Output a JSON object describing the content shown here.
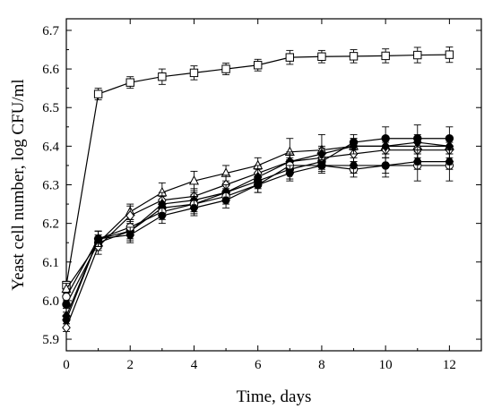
{
  "chart_data": {
    "type": "line",
    "title": "",
    "xlabel": "Time, days",
    "ylabel": "Yeast cell number, log CFU/ml",
    "xlim": [
      0,
      13
    ],
    "ylim": [
      5.87,
      6.73
    ],
    "x_ticks": [
      0,
      2,
      4,
      6,
      8,
      10,
      12
    ],
    "y_ticks": [
      5.9,
      6.0,
      6.1,
      6.2,
      6.3,
      6.4,
      6.5,
      6.6,
      6.7
    ],
    "grid": false,
    "legend": "none",
    "x": [
      0,
      1,
      2,
      3,
      4,
      5,
      6,
      7,
      8,
      9,
      10,
      11,
      12
    ],
    "series": [
      {
        "marker": "open-square",
        "values": [
          6.04,
          6.535,
          6.565,
          6.58,
          6.59,
          6.6,
          6.61,
          6.63,
          6.632,
          6.633,
          6.634,
          6.636,
          6.637
        ],
        "errors": [
          0.01,
          0.015,
          0.015,
          0.02,
          0.018,
          0.015,
          0.015,
          0.018,
          0.016,
          0.017,
          0.018,
          0.02,
          0.02
        ]
      },
      {
        "marker": "open-triangle",
        "values": [
          6.03,
          6.15,
          6.23,
          6.28,
          6.31,
          6.33,
          6.35,
          6.385,
          6.39,
          6.4,
          6.4,
          6.4,
          6.4
        ],
        "errors": [
          0.015,
          0.015,
          0.02,
          0.025,
          0.025,
          0.02,
          0.02,
          0.035,
          0.04,
          0.02,
          0.02,
          0.02,
          0.02
        ]
      },
      {
        "marker": "filled-circle",
        "values": [
          5.99,
          6.15,
          6.18,
          6.24,
          6.25,
          6.28,
          6.31,
          6.34,
          6.36,
          6.41,
          6.42,
          6.42,
          6.42
        ],
        "errors": [
          0.01,
          0.02,
          0.025,
          0.02,
          0.025,
          0.025,
          0.02,
          0.025,
          0.02,
          0.02,
          0.03,
          0.035,
          0.03
        ]
      },
      {
        "marker": "open-diamond",
        "values": [
          5.93,
          6.14,
          6.22,
          6.26,
          6.27,
          6.3,
          6.33,
          6.36,
          6.37,
          6.38,
          6.39,
          6.39,
          6.39
        ],
        "errors": [
          0.01,
          0.02,
          0.025,
          0.02,
          0.02,
          0.025,
          0.02,
          0.025,
          0.025,
          0.02,
          0.02,
          0.02,
          0.02
        ]
      },
      {
        "marker": "filled-diamond",
        "values": [
          5.96,
          6.16,
          6.18,
          6.25,
          6.26,
          6.28,
          6.32,
          6.36,
          6.38,
          6.4,
          6.4,
          6.41,
          6.4
        ],
        "errors": [
          0.01,
          0.02,
          0.02,
          0.02,
          0.02,
          0.02,
          0.02,
          0.02,
          0.02,
          0.02,
          0.02,
          0.02,
          0.02
        ]
      },
      {
        "marker": "open-circle",
        "values": [
          6.01,
          6.16,
          6.19,
          6.23,
          6.25,
          6.27,
          6.3,
          6.35,
          6.35,
          6.34,
          6.35,
          6.35,
          6.35
        ],
        "errors": [
          0.01,
          0.02,
          0.02,
          0.02,
          0.02,
          0.02,
          0.02,
          0.02,
          0.015,
          0.02,
          0.03,
          0.04,
          0.04
        ]
      },
      {
        "marker": "filled-hexagon",
        "values": [
          5.95,
          6.16,
          6.17,
          6.22,
          6.24,
          6.26,
          6.3,
          6.33,
          6.35,
          6.35,
          6.35,
          6.36,
          6.36
        ],
        "errors": [
          0.01,
          0.02,
          0.02,
          0.02,
          0.02,
          0.02,
          0.02,
          0.02,
          0.02,
          0.02,
          0.02,
          0.02,
          0.02
        ]
      }
    ]
  }
}
